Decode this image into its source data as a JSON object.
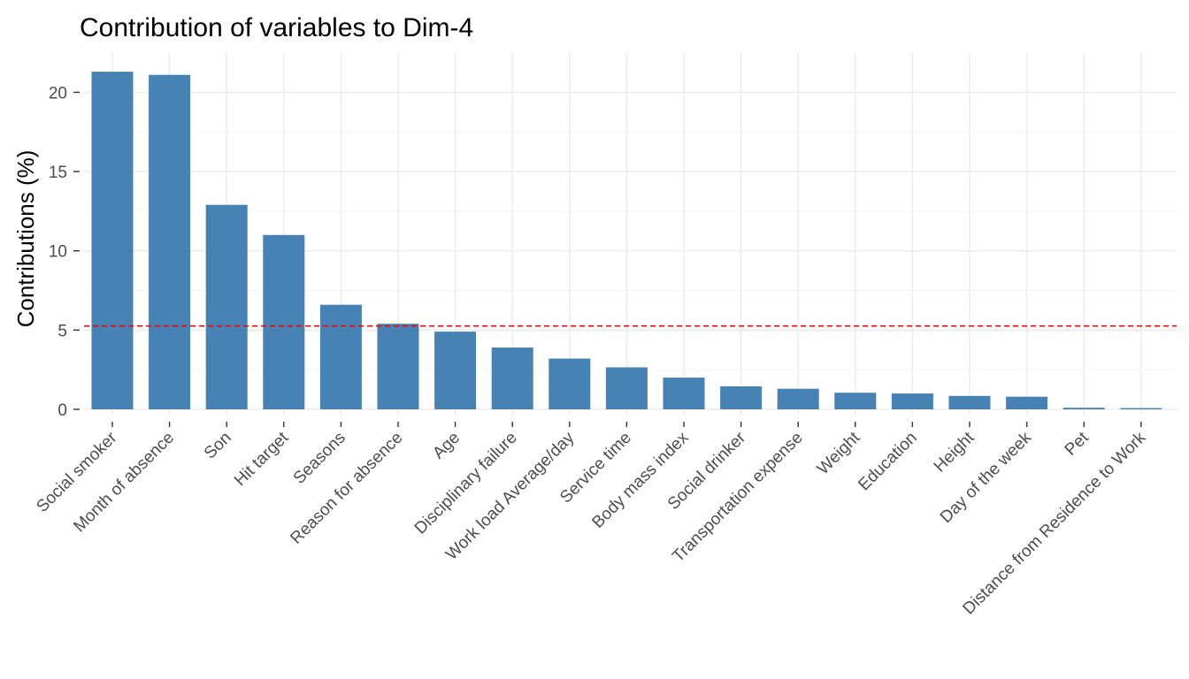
{
  "chart_data": {
    "type": "bar",
    "title": "Contribution of variables to Dim-4",
    "xlabel": "",
    "ylabel": "Contributions (%)",
    "categories": [
      "Social smoker",
      "Month of absence",
      "Son",
      "Hit target",
      "Seasons",
      "Reason for absence",
      "Age",
      "Disciplinary failure",
      "Work load Average/day",
      "Service time",
      "Body mass index",
      "Social drinker",
      "Transportation expense",
      "Weight",
      "Education",
      "Height",
      "Day of the week",
      "Pet",
      "Distance from Residence to Work"
    ],
    "values": [
      21.3,
      21.1,
      12.9,
      11.0,
      6.6,
      5.4,
      4.9,
      3.9,
      3.2,
      2.65,
      2.0,
      1.45,
      1.3,
      1.05,
      1.0,
      0.85,
      0.8,
      0.1,
      0.08
    ],
    "reference_line": 5.26,
    "ylim": [
      0,
      22
    ],
    "yticks": [
      0,
      5,
      10,
      15,
      20
    ],
    "grid": true,
    "bar_color": "#4682b4",
    "reference_line_color": "#ff0000"
  }
}
